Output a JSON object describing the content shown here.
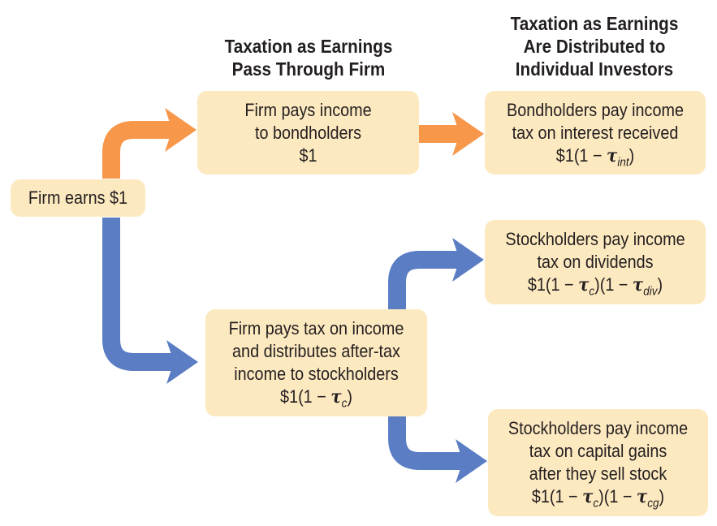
{
  "headings": {
    "through_firm": [
      "Taxation as Earnings",
      "Pass Through Firm"
    ],
    "to_investors": [
      "Taxation as Earnings",
      "Are Distributed to",
      "Individual Investors"
    ]
  },
  "boxes": {
    "firm_earns": {
      "lines": [
        "Firm earns $1"
      ]
    },
    "firm_pays_bondholders": {
      "lines": [
        "Firm pays income",
        "to bondholders",
        "$1"
      ]
    },
    "bondholders_tax": {
      "lines": [
        "Bondholders pay income",
        "tax on interest received"
      ],
      "formula_prefix": "$1(1 − ",
      "tau_sub": "int",
      "formula_suffix": ")"
    },
    "firm_pays_tax": {
      "lines": [
        "Firm pays tax on income",
        "and distributes after-tax",
        "income to stockholders"
      ],
      "formula_prefix": "$1(1 − ",
      "tau_sub": "c",
      "formula_suffix": ")"
    },
    "stockholders_dividends": {
      "lines": [
        "Stockholders pay income",
        "tax on dividends"
      ],
      "formula_prefix": "$1(1 − ",
      "tau1_sub": "c",
      "formula_mid": ")(1 − ",
      "tau2_sub": "div",
      "formula_suffix": ")"
    },
    "stockholders_capital_gains": {
      "lines": [
        "Stockholders pay income",
        "tax on capital gains",
        "after they sell stock"
      ],
      "formula_prefix": "$1(1 − ",
      "tau1_sub": "c",
      "formula_mid": ")(1 − ",
      "tau2_sub": "cg",
      "formula_suffix": ")"
    }
  },
  "symbols": {
    "tau": "τ"
  },
  "colors": {
    "box_fill": "#fde9c0",
    "bond_arrow": "#f7974a",
    "stock_arrow": "#5a7dc4"
  }
}
